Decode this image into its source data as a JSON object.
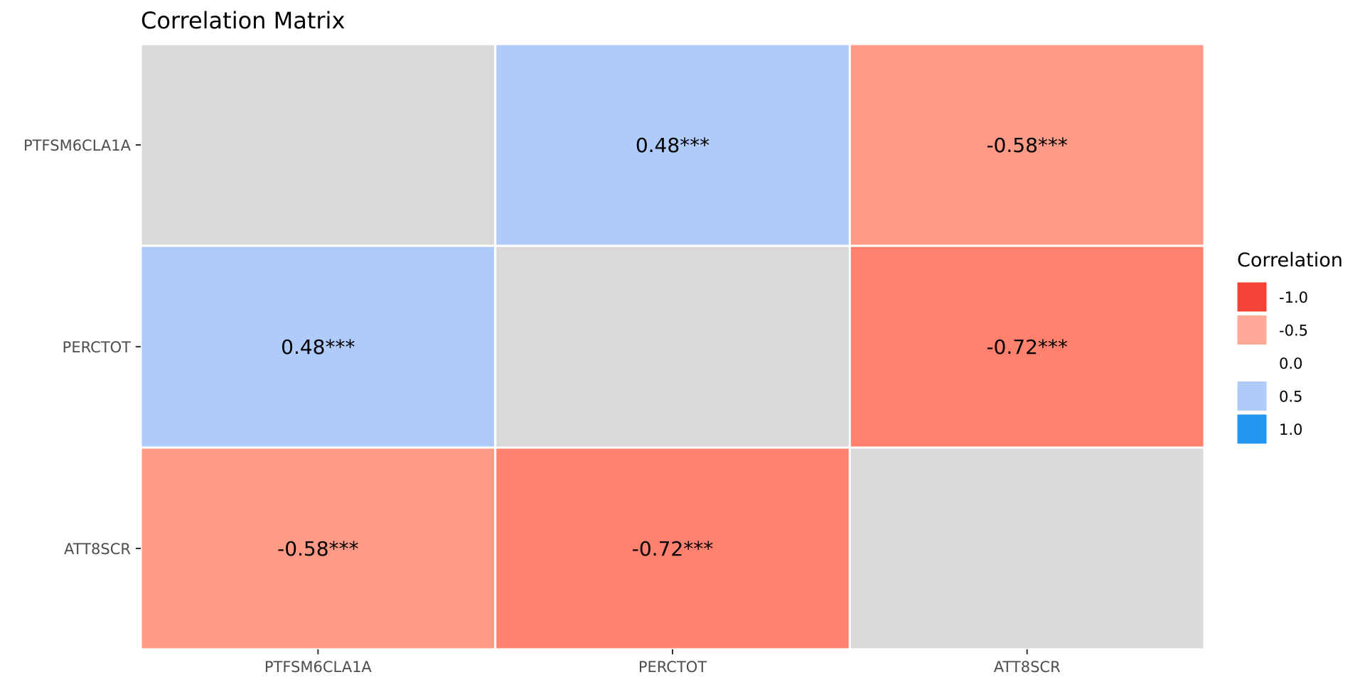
{
  "chart_data": {
    "type": "heatmap",
    "title": "Correlation Matrix",
    "xlabel": "",
    "ylabel": "",
    "x_categories": [
      "PTFSM6CLA1A",
      "PERCTOT",
      "ATT8SCR"
    ],
    "y_categories": [
      "PTFSM6CLA1A",
      "PERCTOT",
      "ATT8SCR"
    ],
    "values": [
      [
        null,
        0.48,
        -0.58
      ],
      [
        0.48,
        null,
        -0.72
      ],
      [
        -0.58,
        -0.72,
        null
      ]
    ],
    "cell_labels": [
      [
        "",
        "0.48***",
        "-0.58***"
      ],
      [
        "0.48***",
        "",
        "-0.72***"
      ],
      [
        "-0.58***",
        "-0.72***",
        ""
      ]
    ],
    "missing_color": "#d9d9d9",
    "colors": {
      "0.48": "#aecbfa",
      "-0.58": "#ff9a87",
      "-0.72": "#ff816e"
    },
    "legend": {
      "title": "Correlation",
      "position": "right",
      "entries": [
        {
          "label": "-1.0",
          "color": "#f44336"
        },
        {
          "label": "-0.5",
          "color": "#ffa999"
        },
        {
          "label": "0.0",
          "color": "#ffffff"
        },
        {
          "label": "0.5",
          "color": "#aecbfa"
        },
        {
          "label": "1.0",
          "color": "#2196f3"
        }
      ]
    }
  }
}
